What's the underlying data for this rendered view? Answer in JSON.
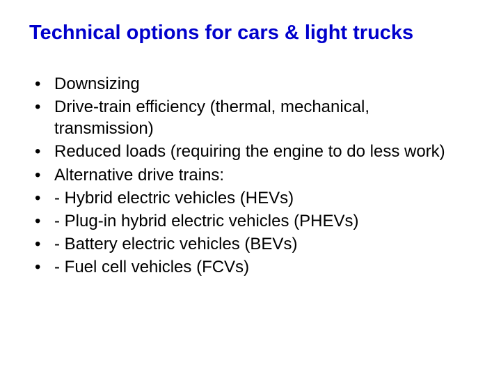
{
  "slide": {
    "title": "Technical options for cars & light trucks",
    "title_color": "#0000cc",
    "title_fontsize": 29,
    "title_fontweight": "bold",
    "body_fontsize": 24,
    "body_color": "#000000",
    "background_color": "#ffffff",
    "bullets": [
      "Downsizing",
      "Drive-train efficiency (thermal, mechanical, transmission)",
      "Reduced loads (requiring the engine to do less work)",
      "Alternative drive trains:",
      "- Hybrid electric vehicles (HEVs)",
      "- Plug-in hybrid electric vehicles (PHEVs)",
      "- Battery electric vehicles (BEVs)",
      "- Fuel cell vehicles (FCVs)"
    ]
  }
}
